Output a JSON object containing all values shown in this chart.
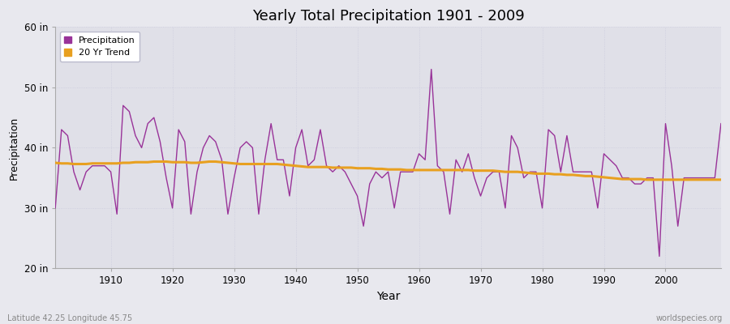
{
  "title": "Yearly Total Precipitation 1901 - 2009",
  "xlabel": "Year",
  "ylabel": "Precipitation",
  "xlim": [
    1901,
    2009
  ],
  "ylim": [
    20,
    60
  ],
  "yticks": [
    20,
    30,
    40,
    50,
    60
  ],
  "ytick_labels": [
    "20 in",
    "30 in",
    "40 in",
    "50 in",
    "60 in"
  ],
  "xticks": [
    1910,
    1920,
    1930,
    1940,
    1950,
    1960,
    1970,
    1980,
    1990,
    2000
  ],
  "precip_color": "#993399",
  "trend_color": "#e8a020",
  "bg_color": "#e8e8ee",
  "plot_bg_color": "#e0e0e8",
  "grid_color": "#ccccdd",
  "spine_color": "#aaaaaa",
  "footer_left": "Latitude 42.25 Longitude 45.75",
  "footer_right": "worldspecies.org",
  "years": [
    1901,
    1902,
    1903,
    1904,
    1905,
    1906,
    1907,
    1908,
    1909,
    1910,
    1911,
    1912,
    1913,
    1914,
    1915,
    1916,
    1917,
    1918,
    1919,
    1920,
    1921,
    1922,
    1923,
    1924,
    1925,
    1926,
    1927,
    1928,
    1929,
    1930,
    1931,
    1932,
    1933,
    1934,
    1935,
    1936,
    1937,
    1938,
    1939,
    1940,
    1941,
    1942,
    1943,
    1944,
    1945,
    1946,
    1947,
    1948,
    1949,
    1950,
    1951,
    1952,
    1953,
    1954,
    1955,
    1956,
    1957,
    1958,
    1959,
    1960,
    1961,
    1962,
    1963,
    1964,
    1965,
    1966,
    1967,
    1968,
    1969,
    1970,
    1971,
    1972,
    1973,
    1974,
    1975,
    1976,
    1977,
    1978,
    1979,
    1980,
    1981,
    1982,
    1983,
    1984,
    1985,
    1986,
    1987,
    1988,
    1989,
    1990,
    1991,
    1992,
    1993,
    1994,
    1995,
    1996,
    1997,
    1998,
    1999,
    2000,
    2001,
    2002,
    2003,
    2004,
    2005,
    2006,
    2007,
    2008,
    2009
  ],
  "precip": [
    30,
    43,
    42,
    36,
    33,
    36,
    37,
    37,
    37,
    36,
    29,
    47,
    46,
    42,
    40,
    44,
    45,
    41,
    35,
    30,
    43,
    41,
    29,
    36,
    40,
    42,
    41,
    38,
    29,
    35,
    40,
    41,
    40,
    29,
    38,
    44,
    38,
    38,
    32,
    40,
    43,
    37,
    38,
    43,
    37,
    36,
    37,
    36,
    34,
    32,
    27,
    34,
    36,
    35,
    36,
    30,
    36,
    36,
    36,
    39,
    38,
    53,
    37,
    36,
    29,
    38,
    36,
    39,
    35,
    32,
    35,
    36,
    36,
    30,
    42,
    40,
    35,
    36,
    36,
    30,
    43,
    42,
    36,
    42,
    36,
    36,
    36,
    36,
    30,
    39,
    38,
    37,
    35,
    35,
    34,
    34,
    35,
    35,
    22,
    44,
    37,
    27,
    35,
    35,
    35,
    35,
    35,
    35,
    44
  ],
  "trend": [
    37.5,
    37.4,
    37.4,
    37.3,
    37.3,
    37.3,
    37.4,
    37.4,
    37.4,
    37.4,
    37.4,
    37.5,
    37.5,
    37.6,
    37.6,
    37.6,
    37.7,
    37.7,
    37.7,
    37.6,
    37.6,
    37.6,
    37.5,
    37.5,
    37.6,
    37.7,
    37.7,
    37.6,
    37.5,
    37.4,
    37.3,
    37.3,
    37.3,
    37.3,
    37.3,
    37.3,
    37.3,
    37.2,
    37.1,
    37.0,
    36.9,
    36.8,
    36.8,
    36.8,
    36.8,
    36.7,
    36.7,
    36.7,
    36.7,
    36.6,
    36.6,
    36.6,
    36.5,
    36.5,
    36.4,
    36.4,
    36.4,
    36.3,
    36.3,
    36.3,
    36.3,
    36.3,
    36.3,
    36.3,
    36.3,
    36.3,
    36.3,
    36.3,
    36.2,
    36.2,
    36.2,
    36.2,
    36.1,
    36.0,
    36.0,
    36.0,
    35.9,
    35.8,
    35.7,
    35.7,
    35.7,
    35.6,
    35.6,
    35.5,
    35.5,
    35.4,
    35.3,
    35.3,
    35.2,
    35.1,
    35.0,
    34.9,
    34.8,
    34.8,
    34.8,
    34.8,
    34.7,
    34.7,
    34.7,
    34.7,
    34.7,
    34.7,
    34.7,
    34.7,
    34.7,
    34.7,
    34.7,
    34.7,
    34.7
  ]
}
